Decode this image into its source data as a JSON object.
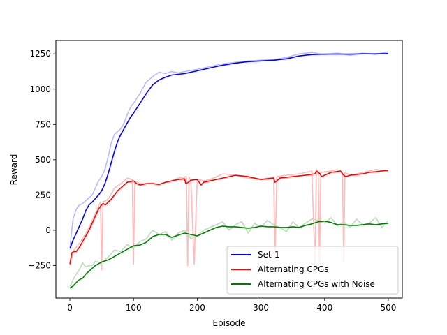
{
  "chart_data": {
    "type": "line",
    "title": "",
    "xlabel": "Episode",
    "ylabel": "Reward",
    "xlim": [
      -22,
      522
    ],
    "ylim": [
      -480,
      1345
    ],
    "x_ticks": [
      0,
      100,
      200,
      300,
      400,
      500
    ],
    "x_tick_labels": [
      "0",
      "100",
      "200",
      "300",
      "400",
      "500"
    ],
    "y_ticks": [
      -250,
      0,
      250,
      500,
      750,
      1000,
      1250
    ],
    "y_tick_labels": [
      "−250",
      "0",
      "250",
      "500",
      "750",
      "1000",
      "1250"
    ],
    "grid": false,
    "legend_position": "lower-right",
    "series": [
      {
        "name": "Set-1",
        "color": "#0000ff",
        "raw_color": "#bbbbff",
        "smoothed": {
          "x": [
            0,
            5,
            10,
            15,
            20,
            25,
            30,
            35,
            40,
            45,
            50,
            55,
            60,
            65,
            70,
            75,
            80,
            85,
            90,
            95,
            100,
            110,
            120,
            130,
            140,
            150,
            160,
            170,
            180,
            200,
            220,
            240,
            260,
            280,
            300,
            320,
            340,
            360,
            380,
            400,
            420,
            440,
            460,
            480,
            500
          ],
          "y": [
            -130,
            -70,
            -20,
            30,
            80,
            140,
            180,
            200,
            225,
            250,
            280,
            330,
            400,
            480,
            560,
            630,
            680,
            720,
            760,
            800,
            830,
            900,
            970,
            1030,
            1065,
            1085,
            1100,
            1105,
            1110,
            1130,
            1150,
            1170,
            1185,
            1195,
            1200,
            1205,
            1215,
            1235,
            1245,
            1248,
            1248,
            1248,
            1250,
            1250,
            1252
          ]
        },
        "raw": {
          "x": [
            0,
            5,
            10,
            15,
            20,
            25,
            30,
            35,
            40,
            45,
            50,
            55,
            60,
            65,
            70,
            75,
            80,
            85,
            90,
            95,
            100,
            110,
            120,
            130,
            140,
            150,
            160,
            170,
            180,
            200,
            220,
            240,
            260,
            280,
            300,
            320,
            340,
            360,
            380,
            400,
            420,
            440,
            460,
            480,
            500
          ],
          "y": [
            -120,
            80,
            150,
            180,
            190,
            210,
            230,
            250,
            300,
            350,
            380,
            430,
            520,
            620,
            680,
            700,
            720,
            760,
            820,
            870,
            900,
            970,
            1050,
            1090,
            1120,
            1110,
            1125,
            1115,
            1125,
            1140,
            1160,
            1180,
            1190,
            1200,
            1205,
            1210,
            1225,
            1250,
            1260,
            1245,
            1255,
            1240,
            1255,
            1245,
            1265
          ]
        }
      },
      {
        "name": "Alternating CPGs",
        "color": "#ff0000",
        "raw_color": "#ffbbbb",
        "smoothed": {
          "x": [
            0,
            3,
            6,
            10,
            15,
            20,
            25,
            30,
            35,
            40,
            45,
            48,
            52,
            56,
            60,
            65,
            70,
            75,
            80,
            85,
            90,
            95,
            100,
            105,
            110,
            120,
            130,
            140,
            150,
            160,
            170,
            180,
            182,
            186,
            190,
            200,
            206,
            210,
            220,
            240,
            260,
            280,
            300,
            320,
            322,
            330,
            340,
            350,
            370,
            385,
            387,
            393,
            395,
            410,
            425,
            430,
            433,
            440,
            450,
            460,
            470,
            480,
            490,
            500
          ],
          "y": [
            -240,
            -160,
            -150,
            -150,
            -120,
            -80,
            -40,
            0,
            50,
            100,
            150,
            170,
            190,
            180,
            200,
            220,
            250,
            280,
            300,
            320,
            340,
            345,
            350,
            330,
            320,
            330,
            330,
            325,
            340,
            350,
            360,
            365,
            330,
            340,
            355,
            360,
            320,
            340,
            350,
            370,
            390,
            380,
            360,
            370,
            340,
            370,
            375,
            380,
            390,
            400,
            420,
            400,
            380,
            410,
            420,
            390,
            380,
            390,
            395,
            400,
            410,
            415,
            420,
            425
          ]
        },
        "raw": {
          "x": [
            0,
            5,
            10,
            20,
            30,
            40,
            48,
            50,
            52,
            60,
            70,
            80,
            90,
            98,
            100,
            102,
            110,
            120,
            130,
            140,
            150,
            160,
            170,
            183,
            185,
            187,
            190,
            195,
            200,
            210,
            220,
            240,
            260,
            280,
            300,
            320,
            322,
            325,
            340,
            360,
            380,
            385,
            387,
            390,
            392,
            394,
            410,
            420,
            428,
            430,
            432,
            440,
            460,
            480,
            500
          ],
          "y": [
            -240,
            -150,
            -120,
            -60,
            20,
            120,
            200,
            -280,
            200,
            220,
            300,
            330,
            370,
            360,
            -240,
            350,
            330,
            330,
            335,
            320,
            340,
            350,
            370,
            380,
            -250,
            380,
            350,
            -240,
            360,
            350,
            360,
            400,
            390,
            370,
            360,
            380,
            -200,
            380,
            390,
            400,
            420,
            -250,
            430,
            420,
            -260,
            410,
            420,
            430,
            400,
            -230,
            410,
            390,
            410,
            430,
            420
          ]
        }
      },
      {
        "name": "Alternating CPGs with Noise",
        "color": "#008000",
        "raw_color": "#bbddbb",
        "smoothed": {
          "x": [
            0,
            5,
            10,
            15,
            20,
            25,
            30,
            35,
            40,
            50,
            60,
            70,
            80,
            90,
            100,
            110,
            120,
            130,
            140,
            150,
            160,
            170,
            180,
            190,
            200,
            210,
            220,
            230,
            240,
            250,
            260,
            270,
            280,
            290,
            300,
            310,
            320,
            330,
            340,
            350,
            360,
            370,
            380,
            390,
            400,
            410,
            420,
            430,
            440,
            450,
            460,
            470,
            480,
            490,
            500
          ],
          "y": [
            -410,
            -395,
            -370,
            -350,
            -340,
            -310,
            -290,
            -270,
            -250,
            -225,
            -210,
            -185,
            -160,
            -135,
            -110,
            -105,
            -85,
            -45,
            -30,
            -30,
            -50,
            -35,
            -20,
            -30,
            -40,
            -20,
            0,
            20,
            30,
            25,
            25,
            20,
            15,
            20,
            30,
            25,
            25,
            20,
            20,
            25,
            20,
            35,
            45,
            60,
            65,
            55,
            40,
            40,
            35,
            35,
            40,
            45,
            40,
            45,
            50
          ]
        },
        "raw": {
          "x": [
            0,
            5,
            10,
            15,
            20,
            25,
            30,
            35,
            40,
            50,
            60,
            70,
            80,
            90,
            100,
            110,
            120,
            130,
            140,
            150,
            160,
            170,
            180,
            190,
            200,
            210,
            220,
            230,
            240,
            250,
            260,
            270,
            280,
            290,
            300,
            310,
            320,
            330,
            340,
            350,
            360,
            370,
            380,
            390,
            400,
            410,
            420,
            430,
            440,
            450,
            460,
            470,
            480,
            490,
            500
          ],
          "y": [
            -400,
            -350,
            -310,
            -280,
            -230,
            -260,
            -250,
            -250,
            -220,
            -230,
            -190,
            -140,
            -150,
            -100,
            -130,
            -80,
            -60,
            0,
            -30,
            -10,
            -70,
            -20,
            0,
            -60,
            -40,
            0,
            20,
            40,
            60,
            0,
            40,
            60,
            -20,
            50,
            20,
            70,
            40,
            20,
            -10,
            60,
            20,
            50,
            80,
            70,
            50,
            90,
            30,
            60,
            20,
            80,
            40,
            50,
            90,
            20,
            70
          ]
        }
      }
    ]
  }
}
